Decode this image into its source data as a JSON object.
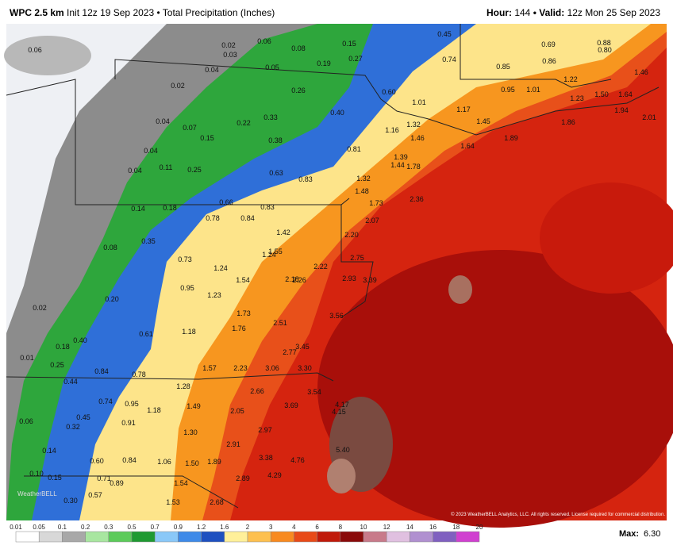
{
  "header": {
    "title": "WPC 2.5 km",
    "subtitle": "Init 12z 19 Sep 2023 • Total Precipitation (Inches)",
    "hour_label": "Hour:",
    "hour": "144",
    "valid_label": "• Valid:",
    "valid": "12z Mon 25 Sep 2023"
  },
  "map": {
    "labels": [
      "0.06",
      "0.02",
      "0.03",
      "0.06",
      "0.08",
      "0.15",
      "0.45",
      "0.69",
      "0.80",
      "0.88",
      "0.04",
      "0.19",
      "0.27",
      "0.05",
      "0.74",
      "0.86",
      "0.85",
      "1.46",
      "0.02",
      "0.26",
      "0.60",
      "0.95",
      "1.01",
      "1.22",
      "1.50",
      "1.64",
      "1.23",
      "0.04",
      "0.07",
      "0.22",
      "0.33",
      "0.40",
      "1.01",
      "1.17",
      "1.45",
      "1.94",
      "2.01",
      "1.86",
      "0.15",
      "0.38",
      "1.16",
      "1.32",
      "1.46",
      "1.64",
      "1.89",
      "0.04",
      "0.81",
      "1.39",
      "1.44",
      "1.78",
      "0.04",
      "0.11",
      "0.25",
      "0.63",
      "0.83",
      "1.32",
      "1.48",
      "1.73",
      "2.36",
      "0.14",
      "0.18",
      "0.66",
      "0.84",
      "0.78",
      "0.83",
      "2.07",
      "1.42",
      "2.20",
      "0.35",
      "0.08",
      "0.73",
      "1.24",
      "1.55",
      "2.75",
      "2.22",
      "1.24",
      "1.54",
      "2.18",
      "2.26",
      "2.93",
      "3.39",
      "0.95",
      "1.23",
      "0.20",
      "0.02",
      "1.73",
      "3.56",
      "2.51",
      "1.76",
      "1.18",
      "0.61",
      "3.45",
      "2.77",
      "0.40",
      "0.18",
      "0.01",
      "1.57",
      "2.23",
      "3.06",
      "3.30",
      "0.25",
      "0.84",
      "0.78",
      "0.44",
      "1.28",
      "2.66",
      "3.54",
      "0.74",
      "0.95",
      "1.18",
      "1.49",
      "2.05",
      "3.69",
      "4.17",
      "4.15",
      "0.06",
      "0.45",
      "0.91",
      "0.32",
      "1.30",
      "2.97",
      "2.91",
      "5.40",
      "0.14",
      "0.60",
      "0.84",
      "1.06",
      "1.50",
      "1.89",
      "3.38",
      "4.76",
      "0.10",
      "0.15",
      "0.71",
      "0.89",
      "4.29",
      "2.89",
      "1.54",
      "0.57",
      "0.30",
      "1.53",
      "2.68"
    ],
    "copyright": "© 2023 WeatherBELL Analytics, LLC. All rights reserved. License required for commercial distribution.",
    "watermark": "WeatherBELL"
  },
  "legend": {
    "ticks": [
      "0.01",
      "0.05",
      "0.1",
      "0.2",
      "0.3",
      "0.5",
      "0.7",
      "0.9",
      "1.2",
      "1.6",
      "2",
      "3",
      "4",
      "6",
      "8",
      "10",
      "12",
      "14",
      "16",
      "18",
      "20"
    ]
  },
  "max": {
    "label": "Max:",
    "value": "6.30"
  }
}
